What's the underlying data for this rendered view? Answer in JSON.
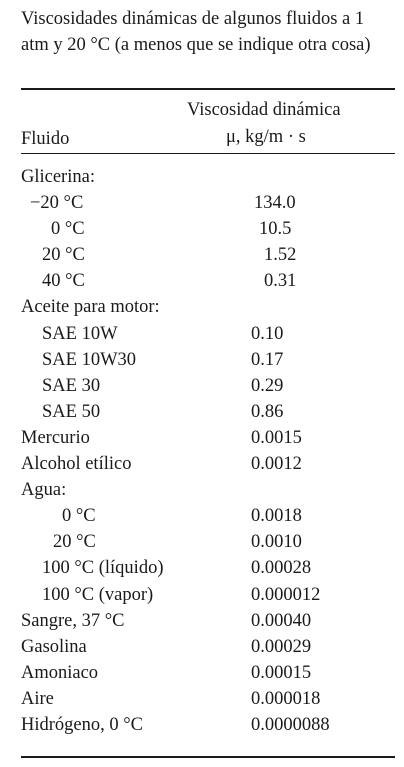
{
  "caption": "Viscosidades dinámicas de algunos fluidos a 1 atm y 20 °C (a menos que se indique otra cosa)",
  "header": {
    "fluid": "Fluido",
    "viscosity_line1": "Viscosidad dinámica",
    "viscosity_line2": "μ, kg/m · s"
  },
  "rows": [
    {
      "name": "Glicerina:",
      "value": ""
    },
    {
      "name": "−20 °C",
      "value": "134.0"
    },
    {
      "name": "0 °C",
      "value": "10.5"
    },
    {
      "name": "20 °C",
      "value": "1.52"
    },
    {
      "name": "40 °C",
      "value": "0.31"
    },
    {
      "name": "Aceite para motor:",
      "value": ""
    },
    {
      "name": "SAE 10W",
      "value": "0.10"
    },
    {
      "name": "SAE 10W30",
      "value": "0.17"
    },
    {
      "name": "SAE 30",
      "value": "0.29"
    },
    {
      "name": "SAE 50",
      "value": "0.86"
    },
    {
      "name": "Mercurio",
      "value": "0.0015"
    },
    {
      "name": "Alcohol etílico",
      "value": "0.0012"
    },
    {
      "name": "Agua:",
      "value": ""
    },
    {
      "name": "0 °C",
      "value": "0.0018"
    },
    {
      "name": "20 °C",
      "value": "0.0010"
    },
    {
      "name": "100 °C (líquido)",
      "value": "0.00028"
    },
    {
      "name": "100 °C (vapor)",
      "value": "0.000012"
    },
    {
      "name": "Sangre, 37 °C",
      "value": "0.00040"
    },
    {
      "name": "Gasolina",
      "value": "0.00029"
    },
    {
      "name": "Amoniaco",
      "value": "0.00015"
    },
    {
      "name": "Aire",
      "value": "0.000018"
    },
    {
      "name": "Hidrógeno, 0 °C",
      "value": "0.0000088"
    }
  ]
}
